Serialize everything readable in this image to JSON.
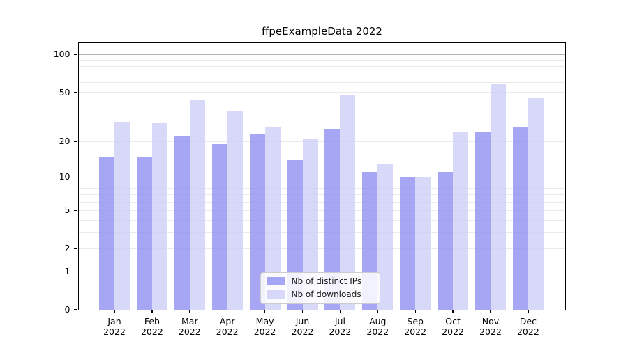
{
  "title": "ffpeExampleData 2022",
  "legend": {
    "items": [
      {
        "label": "Nb of distinct IPs",
        "color": "#8d8df2"
      },
      {
        "label": "Nb of downloads",
        "color": "#cdcdf7"
      }
    ]
  },
  "chart_data": {
    "type": "bar",
    "title": "ffpeExampleData 2022",
    "categories": [
      "Jan 2022",
      "Feb 2022",
      "Mar 2022",
      "Apr 2022",
      "May 2022",
      "Jun 2022",
      "Jul 2022",
      "Aug 2022",
      "Sep 2022",
      "Oct 2022",
      "Nov 2022",
      "Dec 2022"
    ],
    "series": [
      {
        "name": "Nb of distinct IPs",
        "color": "#8d8df2",
        "values": [
          15,
          15,
          22,
          19,
          23,
          14,
          25,
          11,
          10,
          11,
          24,
          26
        ]
      },
      {
        "name": "Nb of downloads",
        "color": "#cdcdf7",
        "values": [
          29,
          28,
          44,
          35,
          26,
          21,
          47,
          13,
          10,
          24,
          59,
          45
        ]
      }
    ],
    "xlabel": "",
    "ylabel": "",
    "y_axis": {
      "scale": "log1p",
      "max": 124,
      "tick_values": [
        0,
        1,
        2,
        5,
        10,
        20,
        50,
        100
      ],
      "tick_labels": [
        "0",
        "1",
        "2",
        "5",
        "10",
        "20",
        "50",
        "100"
      ],
      "major_gridlines": [
        1,
        10,
        100
      ],
      "minor_gridlines": [
        2,
        3,
        4,
        5,
        6,
        7,
        8,
        9,
        20,
        30,
        40,
        50,
        60,
        70,
        80,
        90
      ]
    },
    "grid": "horizontal",
    "legend_position": "lower center"
  }
}
